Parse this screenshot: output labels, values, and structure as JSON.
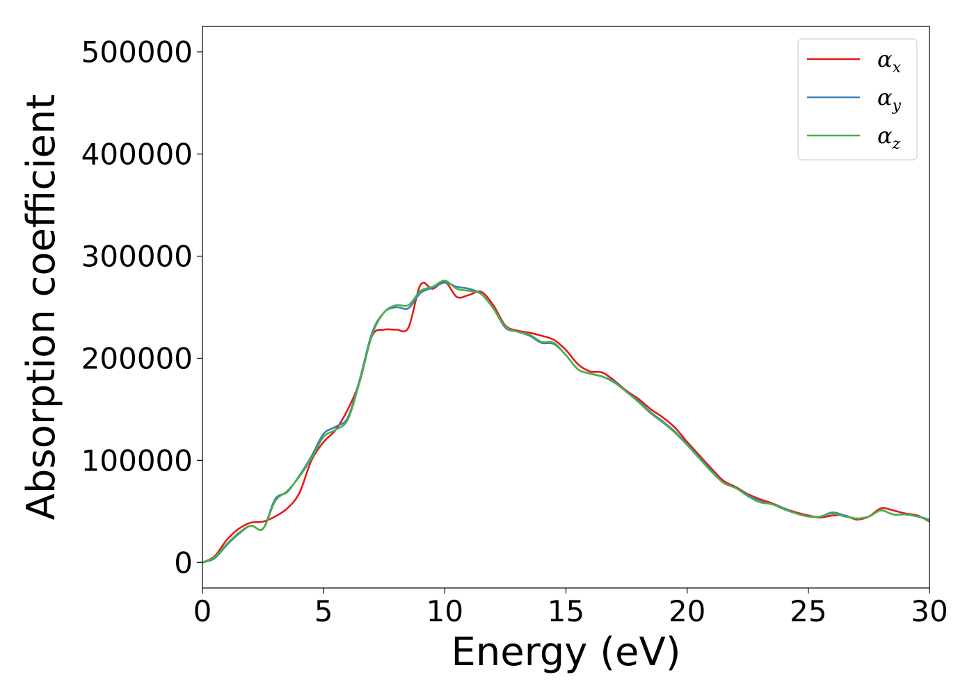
{
  "chart_data": {
    "type": "line",
    "title": "",
    "xlabel": "Energy (eV)",
    "ylabel": "Absorption coefficient",
    "xlim": [
      0,
      30
    ],
    "ylim": [
      -25000,
      525000
    ],
    "xticks": [
      0,
      5,
      10,
      15,
      20,
      25,
      30
    ],
    "xtick_labels": [
      "0",
      "5",
      "10",
      "15",
      "20",
      "25",
      "30"
    ],
    "yticks": [
      0,
      100000,
      200000,
      300000,
      400000,
      500000
    ],
    "ytick_labels": [
      "0",
      "100000",
      "200000",
      "300000",
      "400000",
      "500000"
    ],
    "grid": false,
    "legend_position": "top-right",
    "x": [
      0,
      0.5,
      1,
      1.5,
      2,
      2.5,
      3,
      3.5,
      4,
      4.5,
      5,
      5.5,
      6,
      6.5,
      7,
      7.5,
      8,
      8.5,
      9,
      9.5,
      10,
      10.5,
      11,
      11.5,
      12,
      12.5,
      13,
      13.5,
      14,
      14.5,
      15,
      15.5,
      16,
      16.5,
      17,
      17.5,
      18,
      18.5,
      19,
      19.5,
      20,
      20.5,
      21,
      21.5,
      22,
      22.5,
      23,
      23.5,
      24,
      24.5,
      25,
      25.5,
      26,
      26.5,
      27,
      27.5,
      28,
      28.5,
      29,
      29.5,
      30
    ],
    "series": [
      {
        "name": "α",
        "subscript": "x",
        "color": "#e41a1c",
        "values": [
          0,
          6000,
          22000,
          33000,
          39000,
          40000,
          45000,
          53000,
          68000,
          100000,
          118000,
          130000,
          150000,
          178000,
          222000,
          228000,
          228000,
          230000,
          272000,
          268000,
          275000,
          260000,
          262000,
          265000,
          252000,
          232000,
          227000,
          225000,
          222000,
          218000,
          208000,
          194000,
          187000,
          186000,
          178000,
          168000,
          160000,
          150000,
          142000,
          132000,
          118000,
          105000,
          92000,
          80000,
          74000,
          67000,
          62000,
          58000,
          53000,
          49000,
          46000,
          44000,
          46000,
          46000,
          42000,
          45000,
          53000,
          51000,
          48000,
          46000,
          40000
        ]
      },
      {
        "name": "α",
        "subscript": "y",
        "color": "#377eb8",
        "values": [
          0,
          4000,
          17000,
          28000,
          36000,
          33000,
          62000,
          69000,
          85000,
          104000,
          126000,
          133000,
          142000,
          180000,
          225000,
          245000,
          250000,
          249000,
          264000,
          269000,
          274000,
          270000,
          268000,
          263000,
          249000,
          230000,
          226000,
          222000,
          215000,
          214000,
          203000,
          189000,
          185000,
          182000,
          177000,
          167000,
          158000,
          147000,
          138000,
          128000,
          116000,
          103000,
          90000,
          78000,
          73000,
          66000,
          60000,
          57000,
          53000,
          48000,
          45000,
          45000,
          49000,
          46000,
          43000,
          45000,
          51000,
          47000,
          47000,
          45000,
          42000
        ]
      },
      {
        "name": "α",
        "subscript": "z",
        "color": "#4daf4a",
        "values": [
          0,
          5000,
          18000,
          29000,
          36000,
          33000,
          60000,
          70000,
          84000,
          102000,
          123000,
          130000,
          140000,
          178000,
          223000,
          245000,
          252000,
          252000,
          266000,
          270000,
          276000,
          268000,
          266000,
          263000,
          249000,
          231000,
          226000,
          223000,
          216000,
          215000,
          203000,
          189000,
          185000,
          182000,
          176000,
          167000,
          157000,
          146000,
          137000,
          127000,
          115000,
          102000,
          89000,
          78000,
          73000,
          65000,
          59000,
          57000,
          52000,
          48000,
          45000,
          45000,
          48000,
          45000,
          43000,
          45000,
          51000,
          47000,
          47000,
          45000,
          41000
        ]
      }
    ]
  }
}
